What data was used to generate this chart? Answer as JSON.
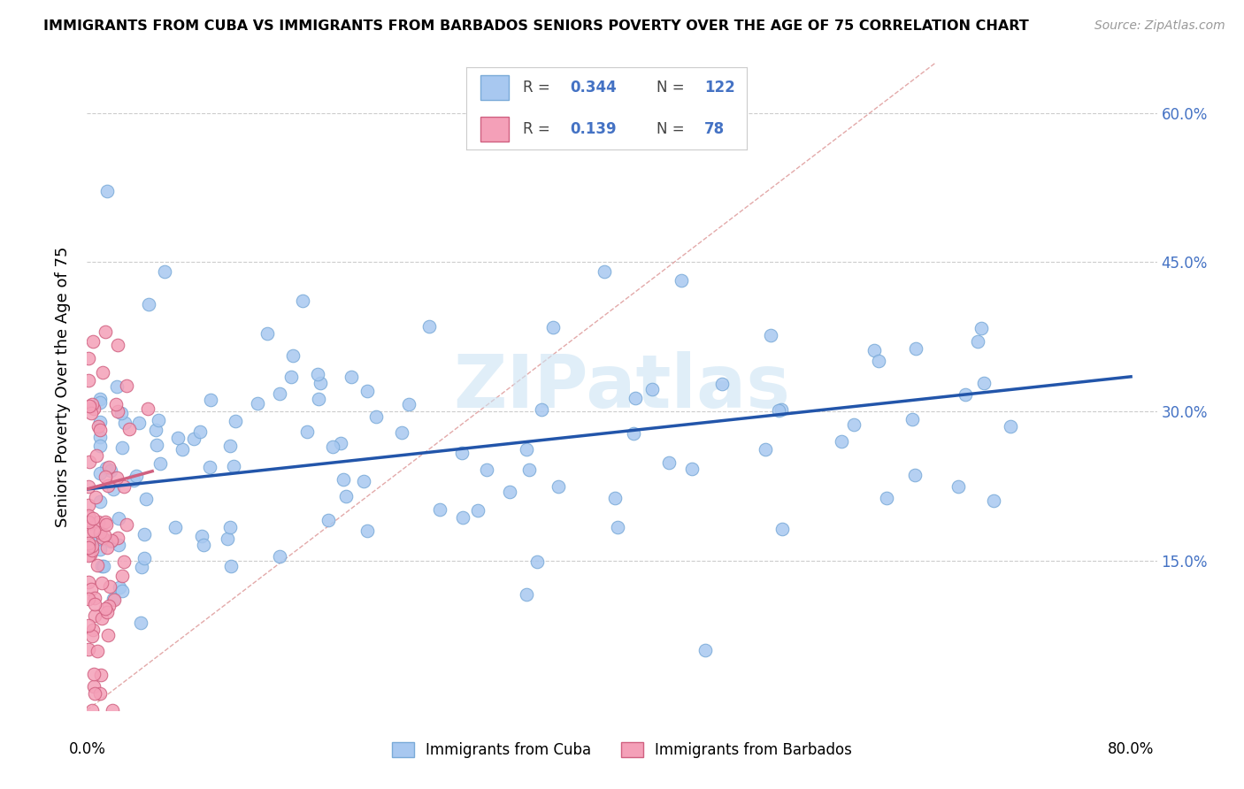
{
  "title": "IMMIGRANTS FROM CUBA VS IMMIGRANTS FROM BARBADOS SENIORS POVERTY OVER THE AGE OF 75 CORRELATION CHART",
  "source": "Source: ZipAtlas.com",
  "ylabel": "Seniors Poverty Over the Age of 75",
  "xlim": [
    0.0,
    0.82
  ],
  "ylim": [
    0.0,
    0.65
  ],
  "yticks": [
    0.15,
    0.3,
    0.45,
    0.6
  ],
  "ytick_labels": [
    "15.0%",
    "30.0%",
    "45.0%",
    "60.0%"
  ],
  "background_color": "#ffffff",
  "cuba_color": "#a8c8f0",
  "cuba_edge_color": "#7aaad8",
  "barbados_color": "#f4a0b8",
  "barbados_edge_color": "#d06080",
  "cuba_line_color": "#2255aa",
  "barbados_line_color": "#d06080",
  "diagonal_color": "#e0a0a0",
  "legend_cuba_label": "Immigrants from Cuba",
  "legend_barbados_label": "Immigrants from Barbados",
  "cuba_R": 0.344,
  "cuba_N": 122,
  "barbados_R": 0.139,
  "barbados_N": 78,
  "cuba_line_x0": 0.0,
  "cuba_line_x1": 0.8,
  "cuba_line_y0": 0.222,
  "cuba_line_y1": 0.335,
  "barbados_line_x0": 0.0,
  "barbados_line_x1": 0.05,
  "barbados_line_y0": 0.222,
  "barbados_line_y1": 0.24,
  "watermark_text": "ZIPatlas",
  "watermark_color": "#cce4f4",
  "title_fontsize": 11.5,
  "source_fontsize": 10,
  "axis_label_fontsize": 13,
  "tick_fontsize": 12,
  "legend_fontsize": 12
}
